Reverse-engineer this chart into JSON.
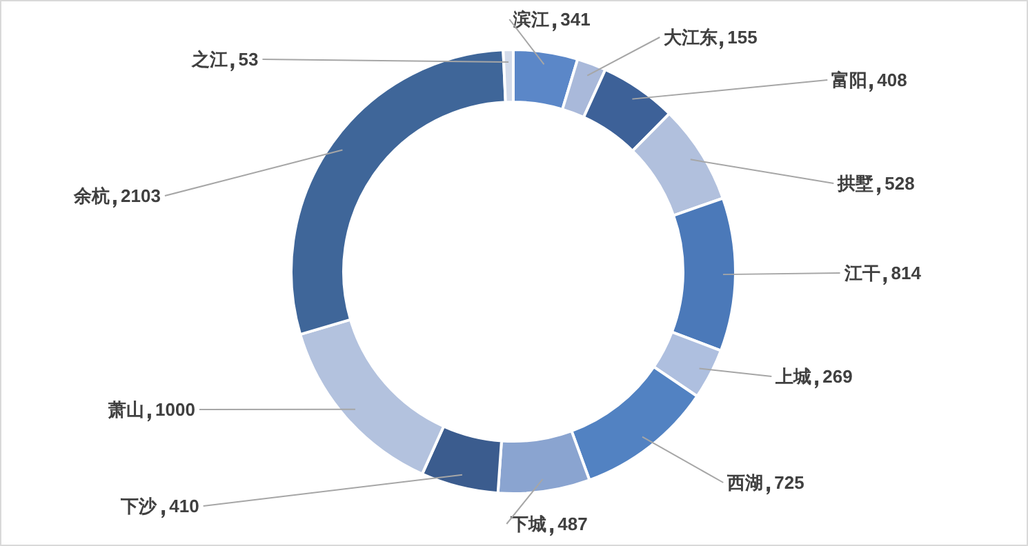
{
  "chart_data": {
    "type": "donut",
    "categories": [
      "滨江",
      "大江东",
      "富阳",
      "拱墅",
      "江干",
      "上城",
      "西湖",
      "下城",
      "下沙",
      "萧山",
      "余杭",
      "之江"
    ],
    "values": [
      341,
      155,
      408,
      528,
      814,
      269,
      725,
      487,
      410,
      1000,
      2103,
      53
    ],
    "colors": [
      "#5b87c8",
      "#a9b9da",
      "#3d6198",
      "#b1c0dd",
      "#4b79b9",
      "#aebfdf",
      "#5282c2",
      "#8aa4d0",
      "#3b5c8e",
      "#b3c2de",
      "#3f6699",
      "#d3dbea"
    ],
    "data_labels": true,
    "legend": false
  }
}
